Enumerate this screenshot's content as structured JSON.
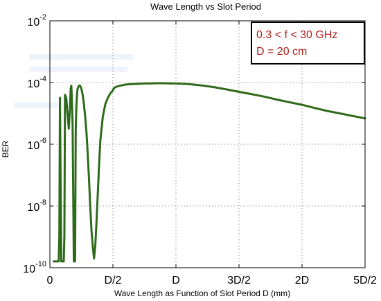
{
  "chart_data": {
    "type": "line",
    "title": "Wave Length vs Slot Period",
    "xlabel": "Wave Length as Function of Slot Period D (mm)",
    "ylabel": "BER",
    "y_scale": "log",
    "xlim": [
      0,
      2.5
    ],
    "ylim": [
      1e-10,
      0.01
    ],
    "x_ticks": [
      {
        "value": 0,
        "label": "0"
      },
      {
        "value": 0.5,
        "label": "D/2"
      },
      {
        "value": 1,
        "label": "D"
      },
      {
        "value": 1.5,
        "label": "3D/2"
      },
      {
        "value": 2,
        "label": "2D"
      },
      {
        "value": 2.5,
        "label": "5D/2"
      }
    ],
    "y_ticks": [
      {
        "value": 1e-10,
        "base": "10",
        "exp": "-10"
      },
      {
        "value": 1e-08,
        "base": "10",
        "exp": "-8"
      },
      {
        "value": 1e-06,
        "base": "10",
        "exp": "-6"
      },
      {
        "value": 0.0001,
        "base": "10",
        "exp": "-4"
      },
      {
        "value": 0.01,
        "base": "10",
        "exp": "-2"
      }
    ],
    "grid": true,
    "series": [
      {
        "color": "#2d6a1a",
        "x": [
          0.03,
          0.05,
          0.07,
          0.075,
          0.08,
          0.09,
          0.095,
          0.1,
          0.105,
          0.11,
          0.115,
          0.12,
          0.13,
          0.14,
          0.15,
          0.16,
          0.165,
          0.17,
          0.175,
          0.18,
          0.19,
          0.2,
          0.205,
          0.21,
          0.215,
          0.22,
          0.23,
          0.24,
          0.25,
          0.26,
          0.27,
          0.28,
          0.29,
          0.3,
          0.31,
          0.32,
          0.33,
          0.34,
          0.35,
          0.36,
          0.37,
          0.38,
          0.39,
          0.4,
          0.42,
          0.44,
          0.46,
          0.48,
          0.5,
          0.505,
          0.51,
          0.52,
          0.54,
          0.57,
          0.6,
          0.65,
          0.7,
          0.75,
          0.8,
          0.85,
          0.9,
          0.95,
          1.0,
          1.1,
          1.2,
          1.3,
          1.4,
          1.5,
          1.6,
          1.7,
          1.8,
          1.9,
          2.0,
          2.1,
          2.2,
          2.3,
          2.4,
          2.5
        ],
        "y": [
          1.6e-10,
          1.6e-10,
          1.6e-10,
          1e-09,
          3.2e-05,
          1.6e-10,
          1.6e-10,
          1.6e-10,
          1.6e-10,
          1.6e-10,
          1e-09,
          4e-05,
          3.2e-05,
          1e-05,
          3.2e-06,
          1.6e-05,
          6.3e-05,
          7.9e-05,
          2.5e-05,
          5e-06,
          1.6e-10,
          1.6e-10,
          3e-06,
          1.6e-05,
          4e-05,
          6.3e-05,
          7.9e-05,
          7.9e-05,
          6.3e-05,
          4e-05,
          2e-05,
          7.9e-06,
          2.5e-06,
          5e-07,
          7.9e-08,
          1e-08,
          1.6e-09,
          5e-10,
          2e-10,
          5e-10,
          3.2e-09,
          2.5e-08,
          2e-07,
          1.3e-06,
          7.9e-06,
          2e-05,
          3.2e-05,
          4.5e-05,
          5.6e-05,
          6.3e-05,
          6.6e-05,
          7.1e-05,
          7.6e-05,
          8.1e-05,
          8.6e-05,
          8.9e-05,
          9.1e-05,
          9.3e-05,
          9.4e-05,
          9.5e-05,
          9.5e-05,
          9.4e-05,
          9.3e-05,
          8.9e-05,
          8.1e-05,
          7.1e-05,
          6e-05,
          5e-05,
          4.2e-05,
          3.5e-05,
          2.8e-05,
          2.3e-05,
          1.9e-05,
          1.5e-05,
          1.2e-05,
          1e-05,
          8.3e-06,
          6.9e-06
        ]
      }
    ],
    "legend": {
      "position": "top-right",
      "lines": [
        "0.3 < f < 30 GHz",
        "D = 20 cm"
      ]
    }
  }
}
